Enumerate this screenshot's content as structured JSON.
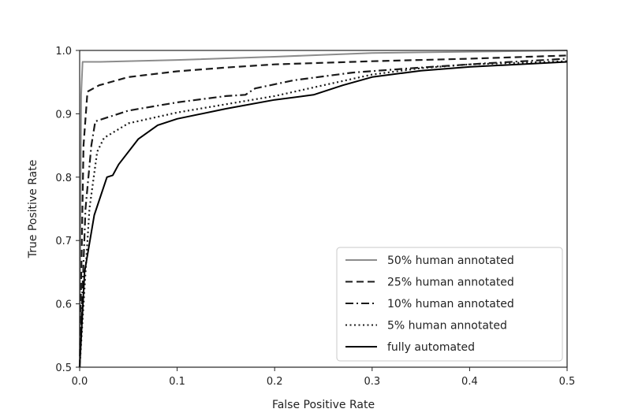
{
  "chart_data": {
    "type": "line",
    "title": "",
    "xlabel": "False Positive Rate",
    "ylabel": "True Positive Rate",
    "xlim": [
      0.0,
      0.5
    ],
    "ylim": [
      0.5,
      1.0
    ],
    "xticks": [
      "0.0",
      "0.1",
      "0.2",
      "0.3",
      "0.4",
      "0.5"
    ],
    "yticks": [
      "0.5",
      "0.6",
      "0.7",
      "0.8",
      "0.9",
      "1.0"
    ],
    "grid": false,
    "legend_position": "bottom-right",
    "series": [
      {
        "name": "50% human annotated",
        "color": "#8c8c8c",
        "dash": "solid",
        "points": [
          [
            0.0,
            0.5
          ],
          [
            0.0015,
            0.93
          ],
          [
            0.003,
            0.982
          ],
          [
            0.02,
            0.982
          ],
          [
            0.1,
            0.985
          ],
          [
            0.2,
            0.99
          ],
          [
            0.3,
            0.996
          ],
          [
            0.4,
            0.998
          ],
          [
            0.5,
            1.0
          ]
        ]
      },
      {
        "name": "25% human annotated",
        "color": "#1a1a1a",
        "dash": "dashed",
        "points": [
          [
            0.0,
            0.5
          ],
          [
            0.004,
            0.85
          ],
          [
            0.008,
            0.935
          ],
          [
            0.02,
            0.945
          ],
          [
            0.05,
            0.958
          ],
          [
            0.1,
            0.967
          ],
          [
            0.15,
            0.973
          ],
          [
            0.2,
            0.978
          ],
          [
            0.3,
            0.983
          ],
          [
            0.4,
            0.987
          ],
          [
            0.5,
            0.992
          ]
        ]
      },
      {
        "name": "10% human annotated",
        "color": "#1a1a1a",
        "dash": "dashdot",
        "points": [
          [
            0.0,
            0.5
          ],
          [
            0.006,
            0.75
          ],
          [
            0.012,
            0.85
          ],
          [
            0.016,
            0.888
          ],
          [
            0.03,
            0.895
          ],
          [
            0.05,
            0.905
          ],
          [
            0.1,
            0.918
          ],
          [
            0.15,
            0.928
          ],
          [
            0.17,
            0.93
          ],
          [
            0.18,
            0.94
          ],
          [
            0.22,
            0.953
          ],
          [
            0.28,
            0.965
          ],
          [
            0.35,
            0.973
          ],
          [
            0.42,
            0.98
          ],
          [
            0.5,
            0.987
          ]
        ]
      },
      {
        "name": "5% human annotated",
        "color": "#1a1a1a",
        "dash": "dotted",
        "points": [
          [
            0.0,
            0.5
          ],
          [
            0.01,
            0.75
          ],
          [
            0.018,
            0.84
          ],
          [
            0.025,
            0.862
          ],
          [
            0.05,
            0.885
          ],
          [
            0.1,
            0.902
          ],
          [
            0.15,
            0.915
          ],
          [
            0.2,
            0.928
          ],
          [
            0.25,
            0.945
          ],
          [
            0.3,
            0.962
          ],
          [
            0.35,
            0.972
          ],
          [
            0.4,
            0.978
          ],
          [
            0.5,
            0.983
          ]
        ]
      },
      {
        "name": "fully automated",
        "color": "#000000",
        "dash": "solid",
        "points": [
          [
            0.0,
            0.5
          ],
          [
            0.005,
            0.65
          ],
          [
            0.015,
            0.74
          ],
          [
            0.028,
            0.8
          ],
          [
            0.034,
            0.803
          ],
          [
            0.04,
            0.82
          ],
          [
            0.06,
            0.86
          ],
          [
            0.08,
            0.882
          ],
          [
            0.1,
            0.892
          ],
          [
            0.15,
            0.908
          ],
          [
            0.2,
            0.922
          ],
          [
            0.24,
            0.93
          ],
          [
            0.27,
            0.945
          ],
          [
            0.3,
            0.958
          ],
          [
            0.35,
            0.968
          ],
          [
            0.4,
            0.974
          ],
          [
            0.5,
            0.982
          ]
        ]
      }
    ]
  }
}
